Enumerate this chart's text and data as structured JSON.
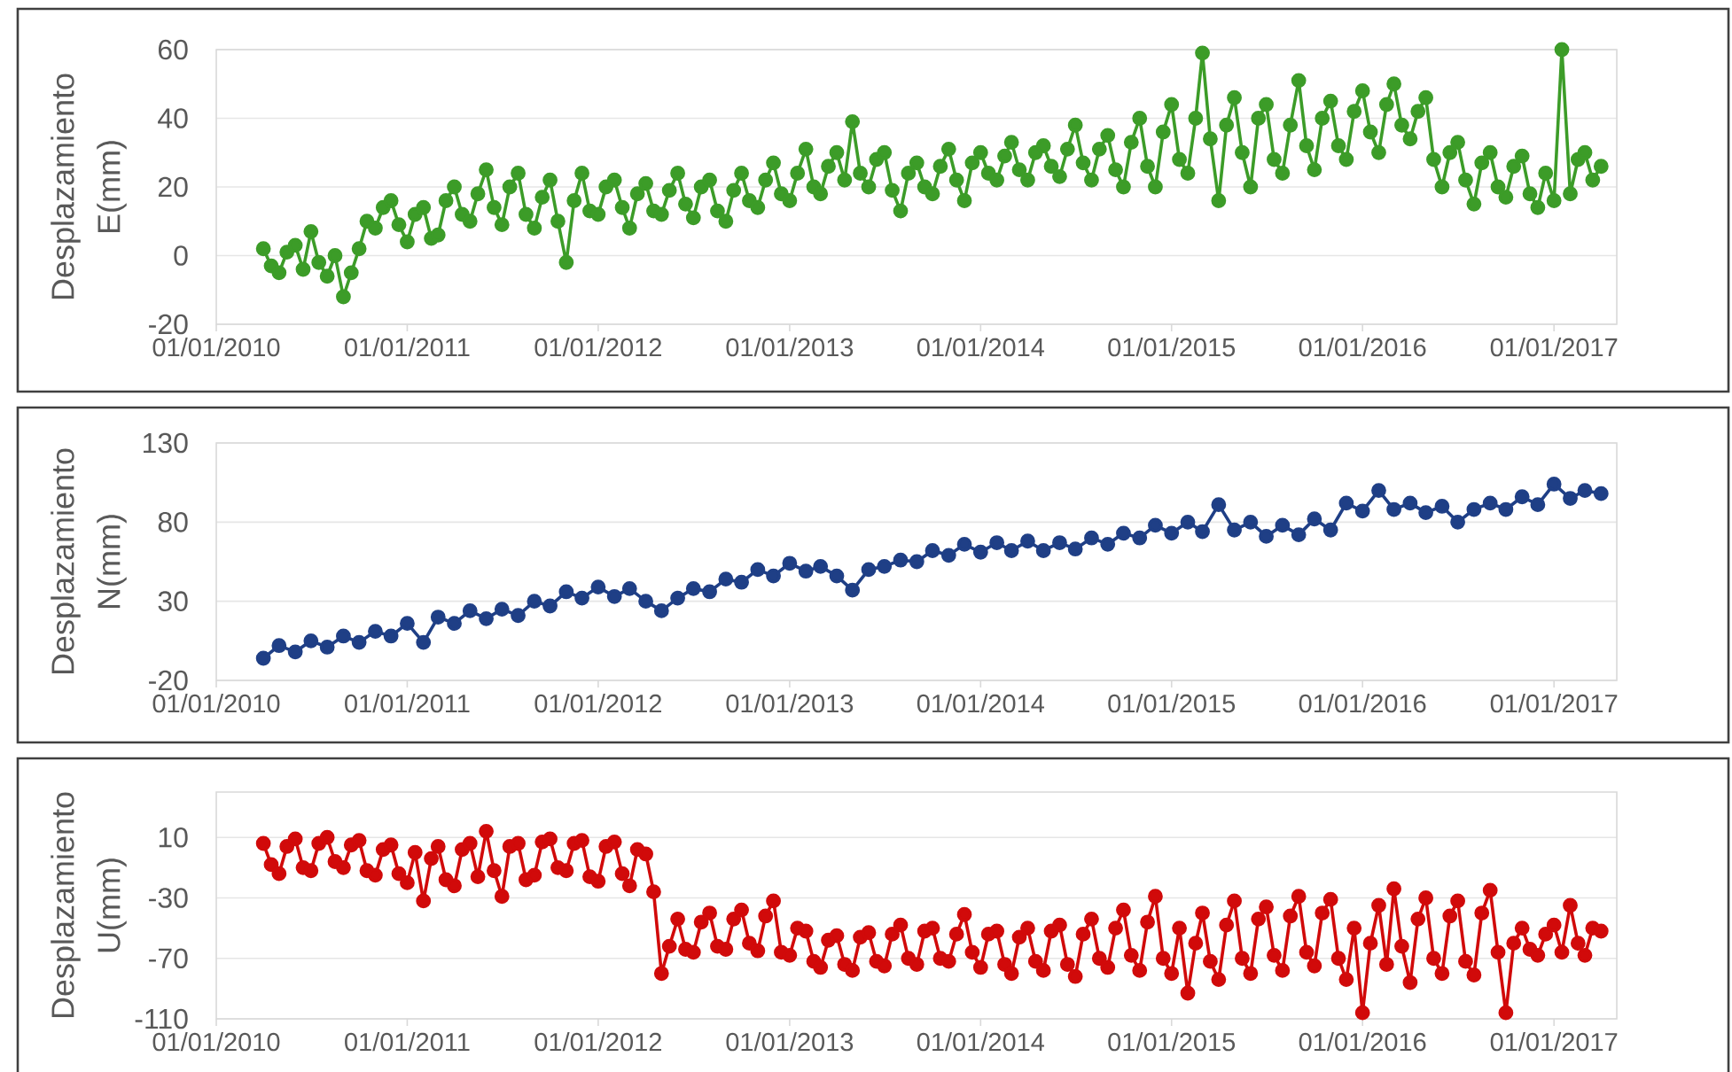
{
  "chart_data": [
    {
      "type": "line",
      "ylabel": "Desplazamiento E(mm)",
      "color": "#3c9c28",
      "marker": "circle",
      "line_style": "solid",
      "grid": "y",
      "x": [
        "2010-04-01",
        "2010-04-16",
        "2010-05-01",
        "2010-05-16",
        "2010-06-01",
        "2010-06-16",
        "2010-07-01",
        "2010-07-16",
        "2010-08-01",
        "2010-08-16",
        "2010-09-01",
        "2010-09-16",
        "2010-10-01",
        "2010-10-16",
        "2010-11-01",
        "2010-11-16",
        "2010-12-01",
        "2010-12-16",
        "2011-01-01",
        "2011-01-16",
        "2011-02-01",
        "2011-02-16",
        "2011-03-01",
        "2011-03-16",
        "2011-04-01",
        "2011-04-16",
        "2011-05-01",
        "2011-05-16",
        "2011-06-01",
        "2011-06-16",
        "2011-07-01",
        "2011-07-16",
        "2011-08-01",
        "2011-08-16",
        "2011-09-01",
        "2011-09-16",
        "2011-10-01",
        "2011-10-16",
        "2011-11-01",
        "2011-11-16",
        "2011-12-01",
        "2011-12-16",
        "2012-01-01",
        "2012-01-16",
        "2012-02-01",
        "2012-02-16",
        "2012-03-01",
        "2012-03-16",
        "2012-04-01",
        "2012-04-16",
        "2012-05-01",
        "2012-05-16",
        "2012-06-01",
        "2012-06-16",
        "2012-07-01",
        "2012-07-16",
        "2012-08-01",
        "2012-08-16",
        "2012-09-01",
        "2012-09-16",
        "2012-10-01",
        "2012-10-16",
        "2012-11-01",
        "2012-11-16",
        "2012-12-01",
        "2012-12-16",
        "2013-01-01",
        "2013-01-16",
        "2013-02-01",
        "2013-02-16",
        "2013-03-01",
        "2013-03-16",
        "2013-04-01",
        "2013-04-16",
        "2013-05-01",
        "2013-05-16",
        "2013-06-01",
        "2013-06-16",
        "2013-07-01",
        "2013-07-16",
        "2013-08-01",
        "2013-08-16",
        "2013-09-01",
        "2013-09-16",
        "2013-10-01",
        "2013-10-16",
        "2013-11-01",
        "2013-11-16",
        "2013-12-01",
        "2013-12-16",
        "2014-01-01",
        "2014-01-16",
        "2014-02-01",
        "2014-02-16",
        "2014-03-01",
        "2014-03-16",
        "2014-04-01",
        "2014-04-16",
        "2014-05-01",
        "2014-05-16",
        "2014-06-01",
        "2014-06-16",
        "2014-07-01",
        "2014-07-16",
        "2014-08-01",
        "2014-08-16",
        "2014-09-01",
        "2014-09-16",
        "2014-10-01",
        "2014-10-16",
        "2014-11-01",
        "2014-11-16",
        "2014-12-01",
        "2014-12-16",
        "2015-01-01",
        "2015-01-16",
        "2015-02-01",
        "2015-02-16",
        "2015-03-01",
        "2015-03-16",
        "2015-04-01",
        "2015-04-16",
        "2015-05-01",
        "2015-05-16",
        "2015-06-01",
        "2015-06-16",
        "2015-07-01",
        "2015-07-16",
        "2015-08-01",
        "2015-08-16",
        "2015-09-01",
        "2015-09-16",
        "2015-10-01",
        "2015-10-16",
        "2015-11-01",
        "2015-11-16",
        "2015-12-01",
        "2015-12-16",
        "2016-01-01",
        "2016-01-16",
        "2016-02-01",
        "2016-02-16",
        "2016-03-01",
        "2016-03-16",
        "2016-04-01",
        "2016-04-16",
        "2016-05-01",
        "2016-05-16",
        "2016-06-01",
        "2016-06-16",
        "2016-07-01",
        "2016-07-16",
        "2016-08-01",
        "2016-08-16",
        "2016-09-01",
        "2016-09-16",
        "2016-10-01",
        "2016-10-16",
        "2016-11-01",
        "2016-11-16",
        "2016-12-01",
        "2016-12-16",
        "2017-01-01",
        "2017-01-16",
        "2017-02-01",
        "2017-02-16",
        "2017-03-01",
        "2017-03-16",
        "2017-04-01"
      ],
      "values": [
        2,
        -3,
        -5,
        1,
        3,
        -4,
        7,
        -2,
        -6,
        0,
        -12,
        -5,
        2,
        10,
        8,
        14,
        16,
        9,
        4,
        12,
        14,
        5,
        6,
        16,
        20,
        12,
        10,
        18,
        25,
        14,
        9,
        20,
        24,
        12,
        8,
        17,
        22,
        10,
        -2,
        16,
        24,
        13,
        12,
        20,
        22,
        14,
        8,
        18,
        21,
        13,
        12,
        19,
        24,
        15,
        11,
        20,
        22,
        13,
        10,
        19,
        24,
        16,
        14,
        22,
        27,
        18,
        16,
        24,
        31,
        20,
        18,
        26,
        30,
        22,
        39,
        24,
        20,
        28,
        30,
        19,
        13,
        24,
        27,
        20,
        18,
        26,
        31,
        22,
        16,
        27,
        30,
        24,
        22,
        29,
        33,
        25,
        22,
        30,
        32,
        26,
        23,
        31,
        38,
        27,
        22,
        31,
        35,
        25,
        20,
        33,
        40,
        26,
        20,
        36,
        44,
        28,
        24,
        40,
        59,
        34,
        16,
        38,
        46,
        30,
        20,
        40,
        44,
        28,
        24,
        38,
        51,
        32,
        25,
        40,
        45,
        32,
        28,
        42,
        48,
        36,
        30,
        44,
        50,
        38,
        34,
        42,
        46,
        28,
        20,
        30,
        33,
        22,
        15,
        27,
        30,
        20,
        17,
        26,
        29,
        18,
        14,
        24,
        16,
        60,
        18,
        28,
        30,
        22,
        26
      ],
      "xlim": [
        "2010-01-01",
        "2017-05-01"
      ],
      "xticks": [
        {
          "value": "2010-01-01",
          "label": "01/01/2010"
        },
        {
          "value": "2011-01-01",
          "label": "01/01/2011"
        },
        {
          "value": "2012-01-01",
          "label": "01/01/2012"
        },
        {
          "value": "2013-01-01",
          "label": "01/01/2013"
        },
        {
          "value": "2014-01-01",
          "label": "01/01/2014"
        },
        {
          "value": "2015-01-01",
          "label": "01/01/2015"
        },
        {
          "value": "2016-01-01",
          "label": "01/01/2016"
        },
        {
          "value": "2017-01-01",
          "label": "01/01/2017"
        }
      ],
      "ylim": [
        -20,
        60
      ],
      "yticks": [
        -20,
        0,
        20,
        40,
        60
      ]
    },
    {
      "type": "line",
      "ylabel": "Desplazamiento N(mm)",
      "color": "#1f3f86",
      "marker": "circle",
      "line_style": "solid",
      "grid": "y",
      "x": [
        "2010-04-01",
        "2010-05-01",
        "2010-06-01",
        "2010-07-01",
        "2010-08-01",
        "2010-09-01",
        "2010-10-01",
        "2010-11-01",
        "2010-12-01",
        "2011-01-01",
        "2011-02-01",
        "2011-03-01",
        "2011-04-01",
        "2011-05-01",
        "2011-06-01",
        "2011-07-01",
        "2011-08-01",
        "2011-09-01",
        "2011-10-01",
        "2011-11-01",
        "2011-12-01",
        "2012-01-01",
        "2012-02-01",
        "2012-03-01",
        "2012-04-01",
        "2012-05-01",
        "2012-06-01",
        "2012-07-01",
        "2012-08-01",
        "2012-09-01",
        "2012-10-01",
        "2012-11-01",
        "2012-12-01",
        "2013-01-01",
        "2013-02-01",
        "2013-03-01",
        "2013-04-01",
        "2013-05-01",
        "2013-06-01",
        "2013-07-01",
        "2013-08-01",
        "2013-09-01",
        "2013-10-01",
        "2013-11-01",
        "2013-12-01",
        "2014-01-01",
        "2014-02-01",
        "2014-03-01",
        "2014-04-01",
        "2014-05-01",
        "2014-06-01",
        "2014-07-01",
        "2014-08-01",
        "2014-09-01",
        "2014-10-01",
        "2014-11-01",
        "2014-12-01",
        "2015-01-01",
        "2015-02-01",
        "2015-03-01",
        "2015-04-01",
        "2015-05-01",
        "2015-06-01",
        "2015-07-01",
        "2015-08-01",
        "2015-09-01",
        "2015-10-01",
        "2015-11-01",
        "2015-12-01",
        "2016-01-01",
        "2016-02-01",
        "2016-03-01",
        "2016-04-01",
        "2016-05-01",
        "2016-06-01",
        "2016-07-01",
        "2016-08-01",
        "2016-09-01",
        "2016-10-01",
        "2016-11-01",
        "2016-12-01",
        "2017-01-01",
        "2017-02-01",
        "2017-03-01",
        "2017-04-01"
      ],
      "values": [
        -6,
        2,
        -2,
        5,
        1,
        8,
        4,
        11,
        8,
        16,
        4,
        20,
        16,
        24,
        19,
        25,
        21,
        30,
        27,
        36,
        32,
        39,
        33,
        38,
        30,
        24,
        32,
        38,
        36,
        44,
        42,
        50,
        46,
        54,
        49,
        52,
        46,
        37,
        50,
        52,
        56,
        55,
        62,
        59,
        66,
        61,
        67,
        62,
        68,
        62,
        67,
        63,
        70,
        66,
        73,
        70,
        78,
        73,
        80,
        74,
        91,
        75,
        80,
        71,
        78,
        72,
        82,
        75,
        92,
        87,
        100,
        88,
        92,
        86,
        90,
        80,
        88,
        92,
        88,
        96,
        91,
        104,
        95,
        100,
        98
      ],
      "xlim": [
        "2010-01-01",
        "2017-05-01"
      ],
      "xticks": [
        {
          "value": "2010-01-01",
          "label": "01/01/2010"
        },
        {
          "value": "2011-01-01",
          "label": "01/01/2011"
        },
        {
          "value": "2012-01-01",
          "label": "01/01/2012"
        },
        {
          "value": "2013-01-01",
          "label": "01/01/2013"
        },
        {
          "value": "2014-01-01",
          "label": "01/01/2014"
        },
        {
          "value": "2015-01-01",
          "label": "01/01/2015"
        },
        {
          "value": "2016-01-01",
          "label": "01/01/2016"
        },
        {
          "value": "2017-01-01",
          "label": "01/01/2017"
        }
      ],
      "ylim": [
        -20,
        130
      ],
      "yticks": [
        -20,
        30,
        80,
        130
      ]
    },
    {
      "type": "line",
      "ylabel": "Desplazamiento U(mm)",
      "color": "#d10a0a",
      "marker": "circle",
      "line_style": "solid",
      "grid": "y",
      "x": [
        "2010-04-01",
        "2010-04-16",
        "2010-05-01",
        "2010-05-16",
        "2010-06-01",
        "2010-06-16",
        "2010-07-01",
        "2010-07-16",
        "2010-08-01",
        "2010-08-16",
        "2010-09-01",
        "2010-09-16",
        "2010-10-01",
        "2010-10-16",
        "2010-11-01",
        "2010-11-16",
        "2010-12-01",
        "2010-12-16",
        "2011-01-01",
        "2011-01-16",
        "2011-02-01",
        "2011-02-16",
        "2011-03-01",
        "2011-03-16",
        "2011-04-01",
        "2011-04-16",
        "2011-05-01",
        "2011-05-16",
        "2011-06-01",
        "2011-06-16",
        "2011-07-01",
        "2011-07-16",
        "2011-08-01",
        "2011-08-16",
        "2011-09-01",
        "2011-09-16",
        "2011-10-01",
        "2011-10-16",
        "2011-11-01",
        "2011-11-16",
        "2011-12-01",
        "2011-12-16",
        "2012-01-01",
        "2012-01-16",
        "2012-02-01",
        "2012-02-16",
        "2012-03-01",
        "2012-03-16",
        "2012-04-01",
        "2012-04-16",
        "2012-05-01",
        "2012-05-16",
        "2012-06-01",
        "2012-06-16",
        "2012-07-01",
        "2012-07-16",
        "2012-08-01",
        "2012-08-16",
        "2012-09-01",
        "2012-09-16",
        "2012-10-01",
        "2012-10-16",
        "2012-11-01",
        "2012-11-16",
        "2012-12-01",
        "2012-12-16",
        "2013-01-01",
        "2013-01-16",
        "2013-02-01",
        "2013-02-16",
        "2013-03-01",
        "2013-03-16",
        "2013-04-01",
        "2013-04-16",
        "2013-05-01",
        "2013-05-16",
        "2013-06-01",
        "2013-06-16",
        "2013-07-01",
        "2013-07-16",
        "2013-08-01",
        "2013-08-16",
        "2013-09-01",
        "2013-09-16",
        "2013-10-01",
        "2013-10-16",
        "2013-11-01",
        "2013-11-16",
        "2013-12-01",
        "2013-12-16",
        "2014-01-01",
        "2014-01-16",
        "2014-02-01",
        "2014-02-16",
        "2014-03-01",
        "2014-03-16",
        "2014-04-01",
        "2014-04-16",
        "2014-05-01",
        "2014-05-16",
        "2014-06-01",
        "2014-06-16",
        "2014-07-01",
        "2014-07-16",
        "2014-08-01",
        "2014-08-16",
        "2014-09-01",
        "2014-09-16",
        "2014-10-01",
        "2014-10-16",
        "2014-11-01",
        "2014-11-16",
        "2014-12-01",
        "2014-12-16",
        "2015-01-01",
        "2015-01-16",
        "2015-02-01",
        "2015-02-16",
        "2015-03-01",
        "2015-03-16",
        "2015-04-01",
        "2015-04-16",
        "2015-05-01",
        "2015-05-16",
        "2015-06-01",
        "2015-06-16",
        "2015-07-01",
        "2015-07-16",
        "2015-08-01",
        "2015-08-16",
        "2015-09-01",
        "2015-09-16",
        "2015-10-01",
        "2015-10-16",
        "2015-11-01",
        "2015-11-16",
        "2015-12-01",
        "2015-12-16",
        "2016-01-01",
        "2016-01-16",
        "2016-02-01",
        "2016-02-16",
        "2016-03-01",
        "2016-03-16",
        "2016-04-01",
        "2016-04-16",
        "2016-05-01",
        "2016-05-16",
        "2016-06-01",
        "2016-06-16",
        "2016-07-01",
        "2016-07-16",
        "2016-08-01",
        "2016-08-16",
        "2016-09-01",
        "2016-09-16",
        "2016-10-01",
        "2016-10-16",
        "2016-11-01",
        "2016-11-16",
        "2016-12-01",
        "2016-12-16",
        "2017-01-01",
        "2017-01-16",
        "2017-02-01",
        "2017-02-16",
        "2017-03-01",
        "2017-03-16",
        "2017-04-01"
      ],
      "values": [
        6,
        -8,
        -14,
        4,
        9,
        -10,
        -12,
        6,
        10,
        -6,
        -10,
        5,
        8,
        -12,
        -15,
        2,
        5,
        -14,
        -20,
        0,
        -32,
        -4,
        4,
        -18,
        -22,
        2,
        6,
        -16,
        14,
        -12,
        -29,
        4,
        6,
        -18,
        -15,
        7,
        9,
        -10,
        -12,
        6,
        8,
        -16,
        -19,
        4,
        7,
        -14,
        -22,
        2,
        -1,
        -26,
        -80,
        -62,
        -44,
        -64,
        -66,
        -46,
        -40,
        -62,
        -64,
        -44,
        -38,
        -60,
        -65,
        -42,
        -32,
        -66,
        -68,
        -50,
        -52,
        -72,
        -76,
        -58,
        -55,
        -74,
        -78,
        -56,
        -53,
        -72,
        -75,
        -54,
        -48,
        -70,
        -74,
        -52,
        -50,
        -70,
        -72,
        -54,
        -41,
        -66,
        -76,
        -54,
        -52,
        -74,
        -80,
        -56,
        -50,
        -72,
        -78,
        -52,
        -48,
        -74,
        -82,
        -54,
        -44,
        -70,
        -76,
        -50,
        -38,
        -68,
        -78,
        -46,
        -29,
        -70,
        -80,
        -50,
        -93,
        -60,
        -40,
        -72,
        -84,
        -48,
        -32,
        -70,
        -80,
        -44,
        -36,
        -68,
        -78,
        -42,
        -29,
        -66,
        -75,
        -40,
        -31,
        -70,
        -84,
        -50,
        -106,
        -60,
        -35,
        -74,
        -24,
        -62,
        -86,
        -44,
        -30,
        -70,
        -80,
        -42,
        -32,
        -72,
        -81,
        -40,
        -25,
        -66,
        -106,
        -60,
        -50,
        -64,
        -68,
        -54,
        -48,
        -66,
        -35,
        -60,
        -68,
        -50,
        -52
      ],
      "xlim": [
        "2010-01-01",
        "2017-05-01"
      ],
      "xticks": [
        {
          "value": "2010-01-01",
          "label": "01/01/2010"
        },
        {
          "value": "2011-01-01",
          "label": "01/01/2011"
        },
        {
          "value": "2012-01-01",
          "label": "01/01/2012"
        },
        {
          "value": "2013-01-01",
          "label": "01/01/2013"
        },
        {
          "value": "2014-01-01",
          "label": "01/01/2014"
        },
        {
          "value": "2015-01-01",
          "label": "01/01/2015"
        },
        {
          "value": "2016-01-01",
          "label": "01/01/2016"
        },
        {
          "value": "2017-01-01",
          "label": "01/01/2017"
        }
      ],
      "ylim": [
        -110,
        40
      ],
      "yticks": [
        -110,
        -70,
        -30,
        10
      ]
    }
  ]
}
